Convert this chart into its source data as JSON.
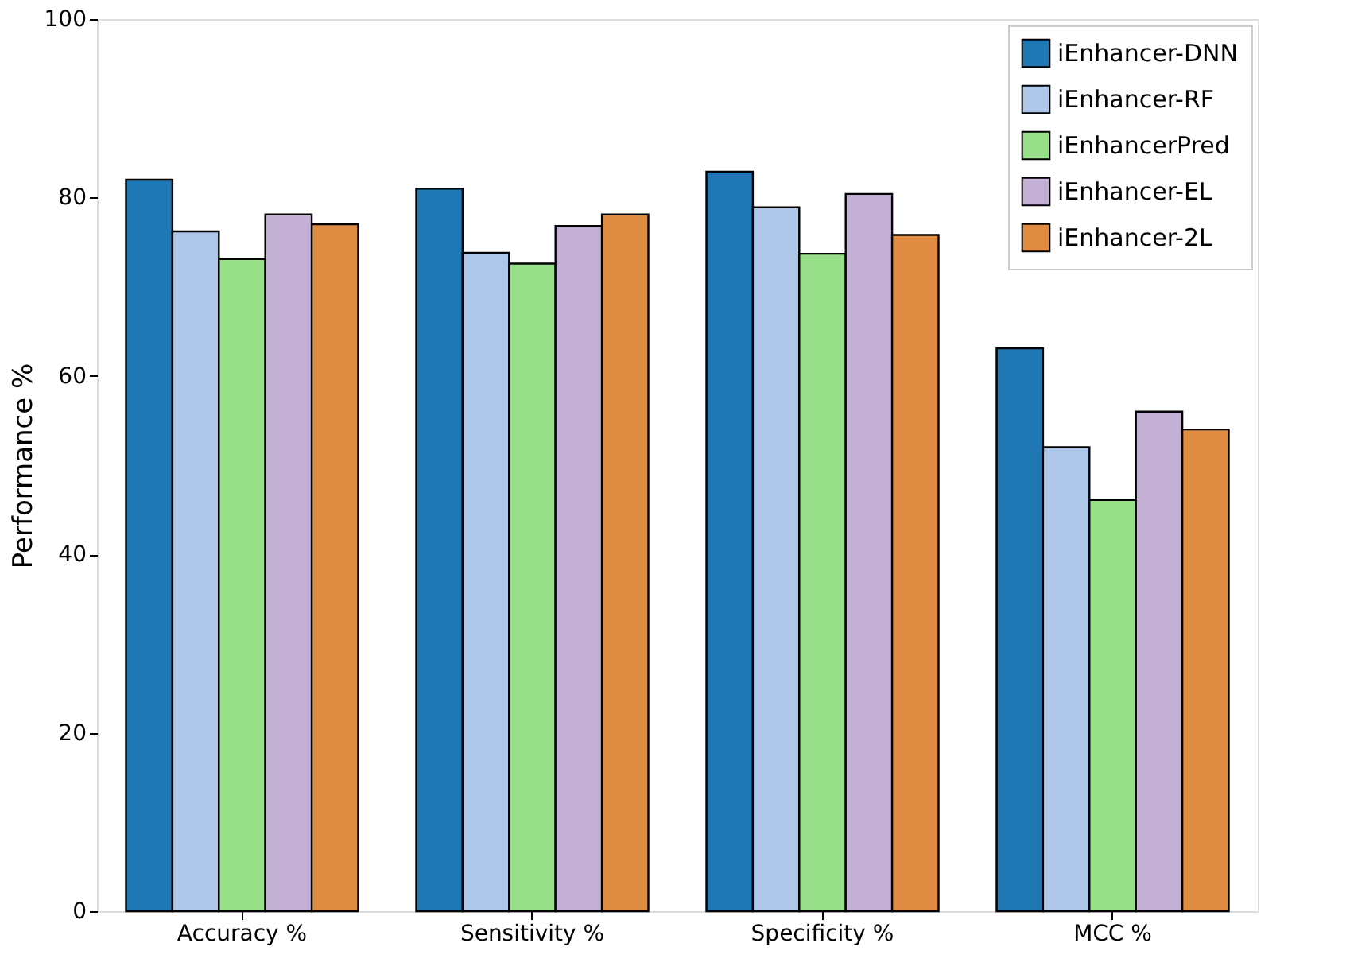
{
  "chart_data": {
    "type": "bar",
    "ylabel": "Performance %",
    "categories": [
      "Accuracy %",
      "Sensitivity %",
      "Specificity %",
      "MCC %"
    ],
    "series": [
      {
        "name": "iEnhancer-DNN",
        "color": "#1f77b4",
        "values": [
          82.0,
          81.0,
          82.9,
          63.1
        ]
      },
      {
        "name": "iEnhancer-RF",
        "color": "#aec7e8",
        "values": [
          76.2,
          73.8,
          78.9,
          52.0
        ]
      },
      {
        "name": "iEnhancerPred",
        "color": "#98df8a",
        "values": [
          73.1,
          72.6,
          73.7,
          46.1
        ]
      },
      {
        "name": "iEnhancer-EL",
        "color": "#c5b0d5",
        "values": [
          78.1,
          76.8,
          80.4,
          56.0
        ]
      },
      {
        "name": "iEnhancer-2L",
        "color": "#e08c43",
        "values": [
          77.0,
          78.1,
          75.8,
          54.0
        ]
      }
    ],
    "ylim": [
      0,
      100
    ],
    "yticks": [
      0,
      20,
      40,
      60,
      80,
      100
    ],
    "grid": false,
    "legend": "top right"
  }
}
